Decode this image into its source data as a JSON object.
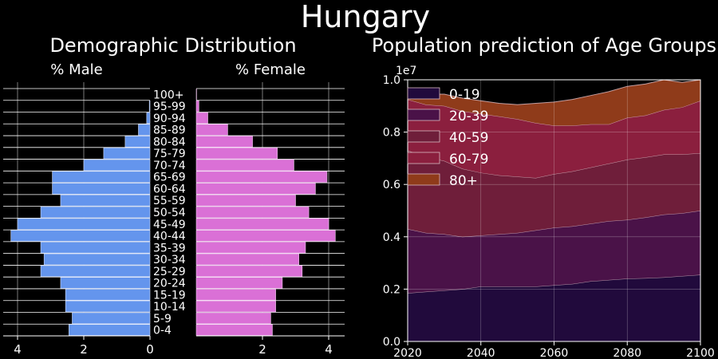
{
  "suptitle": "Hungary",
  "chart_data": [
    {
      "type": "bar",
      "orientation": "horizontal-pyramid",
      "title": "Demographic Distribution",
      "categories": [
        "0-4",
        "5-9",
        "10-14",
        "15-19",
        "20-24",
        "25-29",
        "30-34",
        "35-39",
        "40-44",
        "45-49",
        "50-54",
        "55-59",
        "60-64",
        "65-69",
        "70-74",
        "75-79",
        "80-84",
        "85-89",
        "90-94",
        "95-99",
        "100+"
      ],
      "series": [
        {
          "name": "% Male",
          "values": [
            2.45,
            2.35,
            2.55,
            2.55,
            2.7,
            3.3,
            3.2,
            3.3,
            4.2,
            4.0,
            3.3,
            2.7,
            2.95,
            2.95,
            2.0,
            1.4,
            0.75,
            0.35,
            0.1,
            0.02,
            0.0
          ]
        },
        {
          "name": "% Female",
          "values": [
            2.3,
            2.25,
            2.4,
            2.4,
            2.6,
            3.2,
            3.1,
            3.3,
            4.2,
            4.0,
            3.4,
            3.0,
            3.6,
            3.95,
            2.95,
            2.45,
            1.7,
            0.95,
            0.35,
            0.08,
            0.01
          ]
        }
      ],
      "xlim": [
        0,
        4.5
      ],
      "xticks": [
        "4",
        "2",
        "0",
        "2",
        "4"
      ],
      "grid": true,
      "colors": {
        "male": "#6495ed",
        "female": "#da70d6"
      }
    },
    {
      "type": "area",
      "stacked": true,
      "title": "Population prediction of Age Groups",
      "y_scale_label": "1e7",
      "x": [
        2020,
        2025,
        2030,
        2035,
        2040,
        2045,
        2050,
        2055,
        2060,
        2065,
        2070,
        2075,
        2080,
        2085,
        2090,
        2095,
        2100
      ],
      "series": [
        {
          "name": "0-19",
          "values": [
            0.185,
            0.19,
            0.195,
            0.2,
            0.21,
            0.21,
            0.21,
            0.21,
            0.215,
            0.22,
            0.23,
            0.235,
            0.24,
            0.242,
            0.245,
            0.25,
            0.255
          ]
        },
        {
          "name": "20-39",
          "values": [
            0.245,
            0.225,
            0.215,
            0.2,
            0.195,
            0.2,
            0.205,
            0.215,
            0.22,
            0.22,
            0.22,
            0.225,
            0.225,
            0.232,
            0.24,
            0.24,
            0.245
          ]
        },
        {
          "name": "40-59",
          "values": [
            0.3,
            0.29,
            0.28,
            0.26,
            0.24,
            0.225,
            0.215,
            0.2,
            0.205,
            0.21,
            0.215,
            0.22,
            0.23,
            0.23,
            0.23,
            0.225,
            0.22
          ]
        },
        {
          "name": "60-79",
          "values": [
            0.195,
            0.2,
            0.21,
            0.22,
            0.225,
            0.225,
            0.22,
            0.21,
            0.185,
            0.175,
            0.165,
            0.15,
            0.16,
            0.16,
            0.17,
            0.18,
            0.2
          ]
        },
        {
          "name": "80+",
          "values": [
            0.035,
            0.04,
            0.045,
            0.05,
            0.05,
            0.05,
            0.055,
            0.075,
            0.09,
            0.1,
            0.11,
            0.125,
            0.12,
            0.12,
            0.115,
            0.095,
            0.08
          ]
        }
      ],
      "xlim": [
        2020,
        2100
      ],
      "ylim": [
        0.0,
        1.0
      ],
      "xticks": [
        "2020",
        "2040",
        "2060",
        "2080",
        "2100"
      ],
      "yticks": [
        "0.0",
        "0.2",
        "0.4",
        "0.6",
        "0.8",
        "1.0"
      ],
      "legend_position": "top-left",
      "grid": true,
      "colors": [
        "#210a3c",
        "#4a1248",
        "#6f1e3a",
        "#8b1f3e",
        "#8f3b1a"
      ]
    }
  ]
}
